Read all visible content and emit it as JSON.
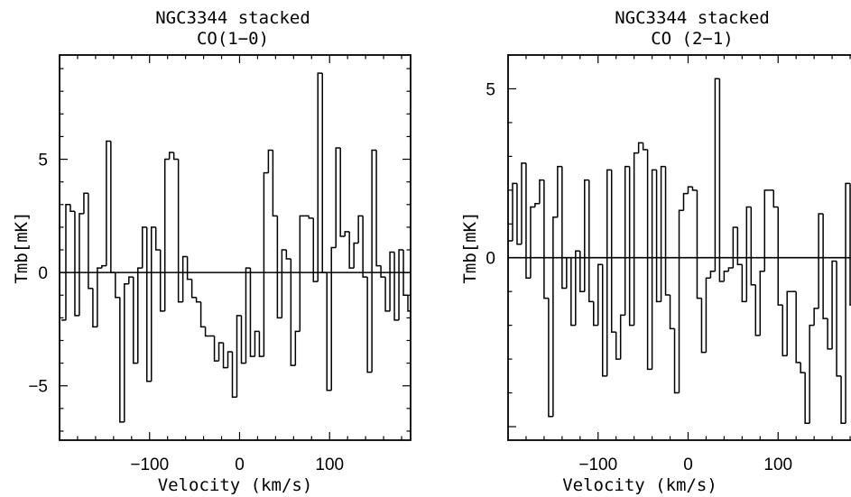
{
  "chart_data": [
    {
      "type": "line",
      "style": "step",
      "title": [
        "NGC3344 stacked",
        "CO(1−0)"
      ],
      "xlabel": "Velocity (km/s)",
      "ylabel": "Tmb[mK]",
      "xlim": [
        -200,
        190
      ],
      "ylim": [
        -7.4,
        9.6
      ],
      "xticks": [
        -100,
        0,
        100
      ],
      "xtick_labels": [
        "−100",
        "0",
        "100"
      ],
      "yticks": [
        -5,
        0,
        5
      ],
      "ytick_labels": [
        "−5",
        "0",
        "5"
      ],
      "zero_line": true,
      "series": [
        {
          "x": [
            -195.5,
            -190.5,
            -185.5,
            -180.5,
            -175.5,
            -170.5,
            -165.5,
            -160.5,
            -155.5,
            -150.5,
            -145.5,
            -140.5,
            -135.5,
            -130.5,
            -125.5,
            -120.5,
            -115.5,
            -110.5,
            -105.5,
            -100.5,
            -95.5,
            -90.5,
            -85.5,
            -80.5,
            -75.5,
            -70.5,
            -65.5,
            -60.5,
            -55.5,
            -50.5,
            -45.5,
            -40.5,
            -35.5,
            -30.5,
            -25.5,
            -20.5,
            -15.5,
            -10.5,
            -5.5,
            -0.5,
            4.5,
            9.5,
            14.5,
            19.5,
            24.5,
            29.5,
            34.5,
            39.5,
            44.5,
            49.5,
            54.5,
            59.5,
            64.5,
            69.5,
            74.5,
            79.5,
            84.5,
            89.5,
            94.5,
            99.5,
            104.5,
            109.5,
            114.5,
            119.5,
            124.5,
            129.5,
            134.5,
            139.5,
            144.5,
            149.5,
            154.5,
            159.5,
            164.5,
            169.5,
            174.5,
            179.5,
            184.5,
            189.5
          ],
          "values": [
            -2.1,
            3.0,
            2.7,
            -1.9,
            2.6,
            3.5,
            -0.7,
            -2.4,
            0.2,
            0.3,
            5.8,
            0.0,
            -1.1,
            -6.6,
            -0.5,
            -0.2,
            -4.0,
            0.2,
            2.0,
            -4.8,
            2.0,
            1.0,
            -1.7,
            5.0,
            5.3,
            5.0,
            -1.3,
            0.7,
            -0.3,
            -1.1,
            -1.3,
            -2.4,
            -2.8,
            -2.8,
            -3.9,
            -3.1,
            -4.2,
            -3.5,
            -5.5,
            -1.9,
            -4.0,
            0.2,
            -3.7,
            -2.6,
            -3.7,
            4.4,
            5.4,
            2.5,
            -2.0,
            1.0,
            0.6,
            -4.1,
            -2.6,
            2.5,
            2.5,
            2.4,
            -0.4,
            8.8,
            0.0,
            -5.2,
            1.1,
            5.5,
            1.6,
            1.8,
            0.2,
            1.3,
            2.5,
            -0.2,
            -4.4,
            5.4,
            0.3,
            -0.2,
            -1.7,
            0.9,
            -2.1,
            1.0,
            -1.0,
            -1.7
          ]
        }
      ]
    },
    {
      "type": "line",
      "style": "step",
      "title": [
        "NGC3344 stacked",
        "CO (2−1)"
      ],
      "xlabel": "Velocity (km/s)",
      "ylabel": "Tmb[mK]",
      "xlim": [
        -200,
        190
      ],
      "ylim": [
        -5.4,
        6.0
      ],
      "xticks": [
        -100,
        0,
        100
      ],
      "xtick_labels": [
        "−100",
        "0",
        "100"
      ],
      "yticks": [
        0,
        5
      ],
      "ytick_labels": [
        "0",
        "5"
      ],
      "zero_line": true,
      "series": [
        {
          "x": [
            -197.5,
            -192.5,
            -187.5,
            -182.5,
            -177.5,
            -172.5,
            -167.5,
            -162.5,
            -157.5,
            -152.5,
            -147.5,
            -142.5,
            -137.5,
            -132.5,
            -127.5,
            -122.5,
            -117.5,
            -112.5,
            -107.5,
            -102.5,
            -97.5,
            -92.5,
            -87.5,
            -82.5,
            -77.5,
            -72.5,
            -67.5,
            -62.5,
            -57.5,
            -52.5,
            -47.5,
            -42.5,
            -37.5,
            -32.5,
            -27.5,
            -22.5,
            -17.5,
            -12.5,
            -7.5,
            -2.5,
            2.5,
            7.5,
            12.5,
            17.5,
            22.5,
            27.5,
            32.5,
            37.5,
            42.5,
            47.5,
            52.5,
            57.5,
            62.5,
            67.5,
            72.5,
            77.5,
            82.5,
            87.5,
            92.5,
            97.5,
            102.5,
            107.5,
            112.5,
            117.5,
            122.5,
            127.5,
            132.5,
            137.5,
            142.5,
            147.5,
            152.5,
            157.5,
            162.5,
            167.5,
            172.5,
            177.5,
            182.5,
            187.5
          ],
          "values": [
            0.5,
            2.2,
            0.4,
            2.8,
            -0.6,
            1.5,
            1.6,
            2.3,
            -1.2,
            -4.7,
            1.2,
            2.7,
            -0.9,
            0.0,
            -2.0,
            0.2,
            -1.0,
            2.3,
            -1.3,
            -2.0,
            -0.2,
            -3.5,
            2.6,
            -2.2,
            -3.0,
            -1.7,
            2.7,
            -2.0,
            3.1,
            3.4,
            3.2,
            -3.3,
            2.6,
            -1.3,
            2.7,
            -1.1,
            -2.1,
            -4.0,
            1.4,
            1.9,
            2.1,
            2.0,
            -1.2,
            -2.8,
            -0.6,
            -0.4,
            5.3,
            -0.7,
            -0.4,
            -0.3,
            0.9,
            -0.2,
            -1.3,
            1.5,
            -0.8,
            -2.3,
            -0.4,
            2.0,
            2.0,
            1.5,
            -1.4,
            -2.9,
            -1.0,
            -1.0,
            -3.1,
            -3.4,
            -4.9,
            -2.0,
            -1.5,
            1.3,
            -1.8,
            -2.7,
            -0.1,
            -3.5,
            -4.9,
            2.2,
            -1.4,
            0.2
          ]
        }
      ]
    }
  ]
}
